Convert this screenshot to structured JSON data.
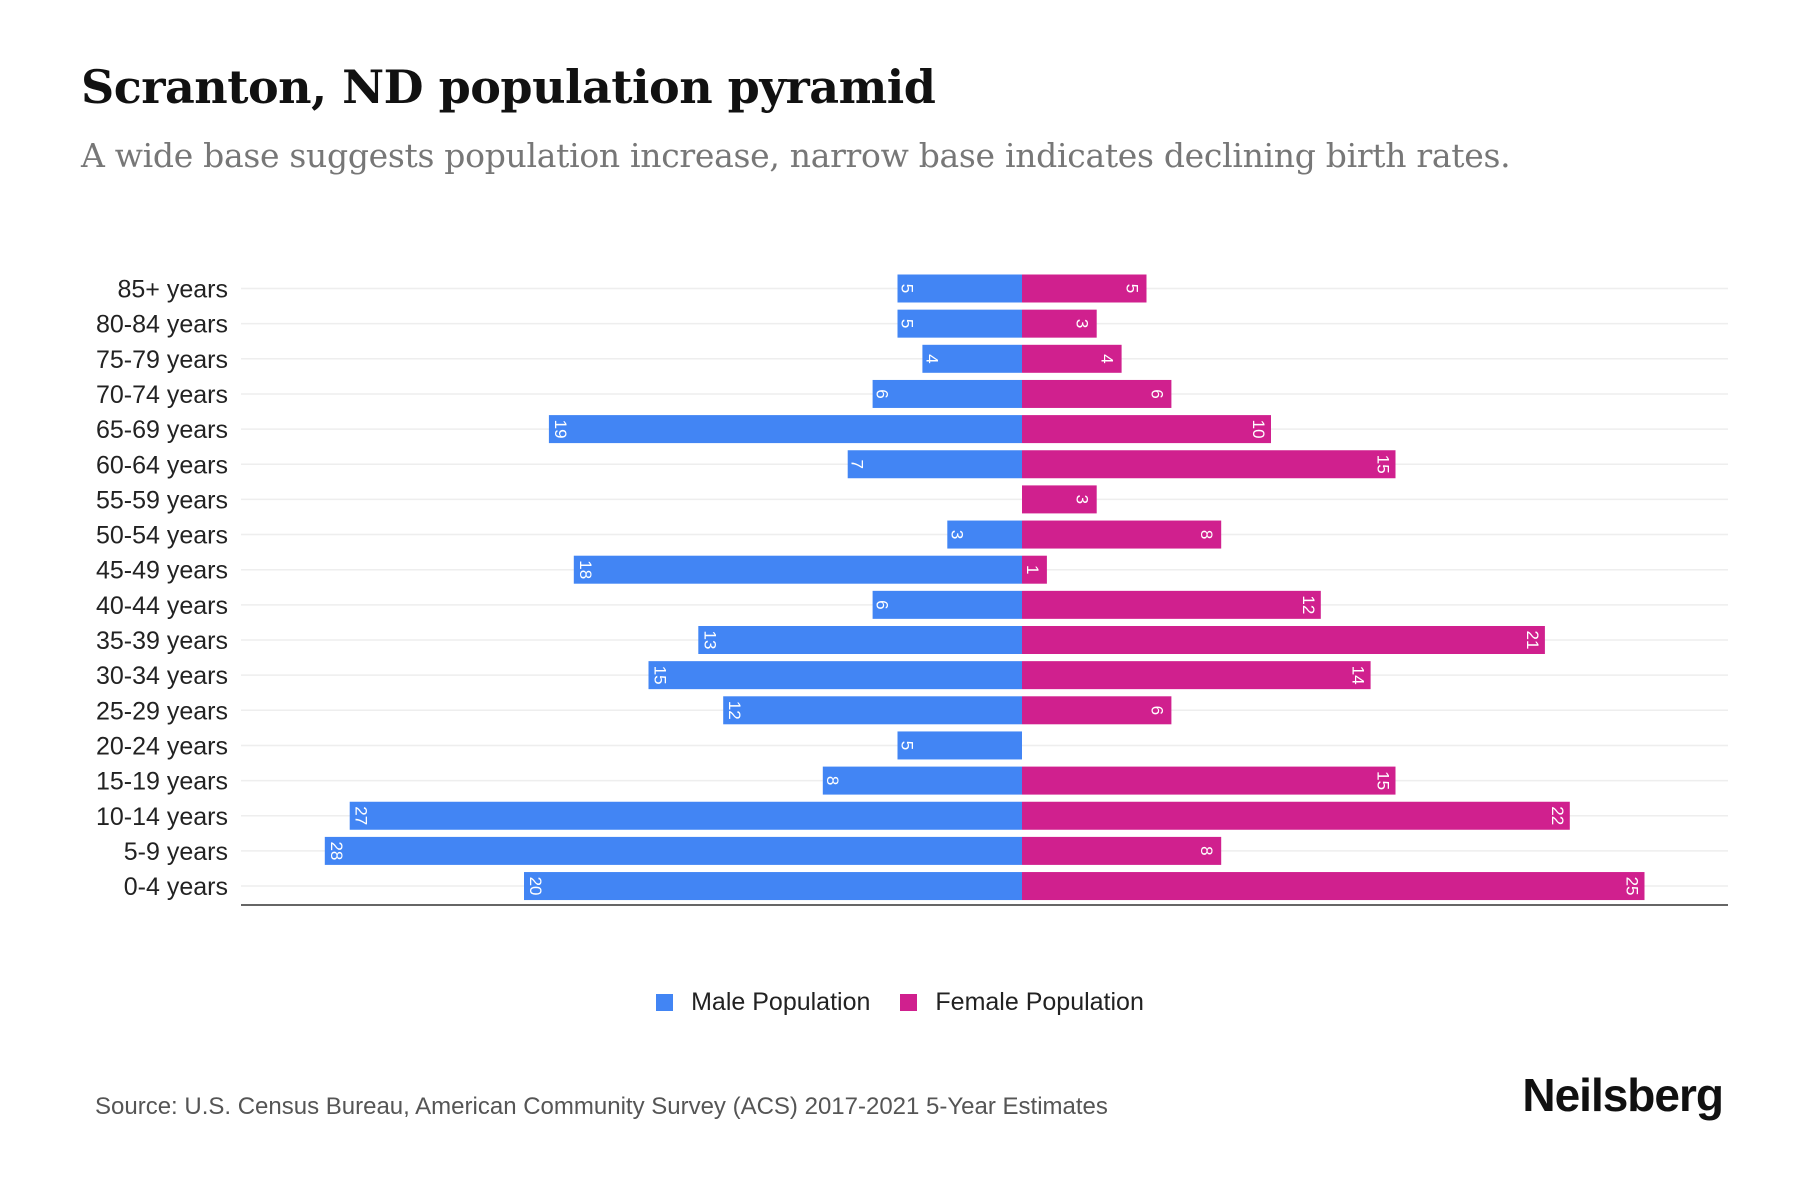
{
  "header": {
    "title": "Scranton, ND population pyramid",
    "subtitle": "A wide base suggests population increase, narrow base indicates declining birth rates."
  },
  "chart_data": {
    "type": "bar",
    "orientation": "horizontal-pyramid",
    "title": "Scranton, ND population pyramid",
    "categories": [
      "85+ years",
      "80-84 years",
      "75-79 years",
      "70-74 years",
      "65-69 years",
      "60-64 years",
      "55-59 years",
      "50-54 years",
      "45-49 years",
      "40-44 years",
      "35-39 years",
      "30-34 years",
      "25-29 years",
      "20-24 years",
      "15-19 years",
      "10-14 years",
      "5-9 years",
      "0-4 years"
    ],
    "series": [
      {
        "name": "Male Population",
        "color": "#4285F4",
        "values": [
          5,
          5,
          4,
          6,
          19,
          7,
          0,
          3,
          18,
          6,
          13,
          15,
          12,
          5,
          8,
          27,
          28,
          20
        ]
      },
      {
        "name": "Female Population",
        "color": "#D0208E",
        "values": [
          5,
          3,
          4,
          6,
          10,
          15,
          3,
          8,
          1,
          12,
          21,
          14,
          6,
          0,
          15,
          22,
          8,
          25
        ]
      }
    ],
    "grid": true,
    "legend_position": "bottom-center"
  },
  "legend": {
    "male": "Male Population",
    "female": "Female Population"
  },
  "footer": {
    "source": "Source: U.S. Census Bureau, American Community Survey (ACS) 2017-2021 5-Year Estimates",
    "logo": "Neilsberg"
  }
}
